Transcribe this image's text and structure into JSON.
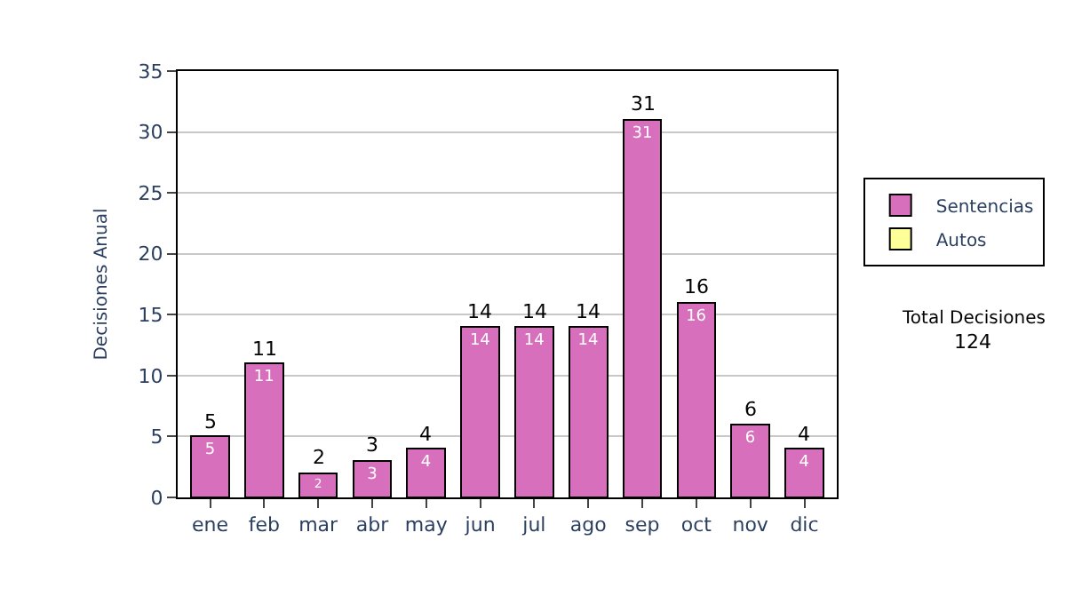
{
  "chart_data": {
    "type": "bar",
    "ylabel": "Decisiones Anual",
    "categories": [
      "ene",
      "feb",
      "mar",
      "abr",
      "may",
      "jun",
      "jul",
      "ago",
      "sep",
      "oct",
      "nov",
      "dic"
    ],
    "series": [
      {
        "name": "Sentencias",
        "color": "#d86fbd",
        "values": [
          5,
          11,
          2,
          3,
          4,
          14,
          14,
          14,
          31,
          16,
          6,
          4
        ]
      },
      {
        "name": "Autos",
        "color": "#ffff99",
        "values": [
          null,
          null,
          null,
          null,
          null,
          null,
          null,
          null,
          null,
          null,
          null,
          null
        ]
      }
    ],
    "stacked": true,
    "data_labels": true,
    "totals": [
      "5",
      "11",
      "2",
      "3",
      "4",
      "14",
      "14",
      "14",
      "31",
      "16",
      "6",
      "4"
    ],
    "ylim": [
      0,
      35
    ],
    "yticks": [
      0,
      5,
      10,
      15,
      20,
      25,
      30,
      35
    ],
    "grid": "y",
    "legend": "right",
    "annotations": [
      "Total Decisiones",
      "124"
    ]
  }
}
